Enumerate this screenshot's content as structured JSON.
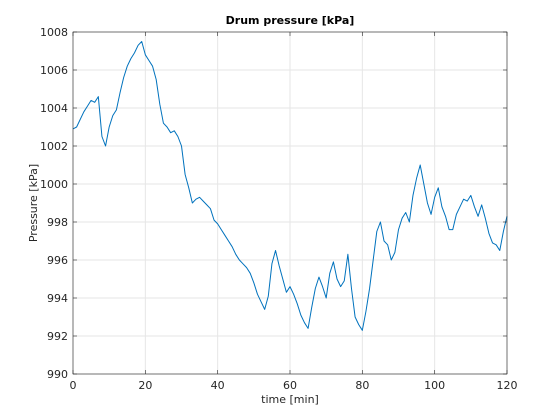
{
  "chart_data": {
    "type": "line",
    "title": "Drum pressure [kPa]",
    "xlabel": "time [min]",
    "ylabel": "Pressure [kPa]",
    "xlim": [
      0,
      120
    ],
    "ylim": [
      990,
      1008
    ],
    "xticks": [
      0,
      20,
      40,
      60,
      80,
      100,
      120
    ],
    "yticks": [
      990,
      992,
      994,
      996,
      998,
      1000,
      1002,
      1004,
      1006,
      1008
    ],
    "grid": true,
    "colors": {
      "series": "#0072BD",
      "grid": "#e6e6e6",
      "axis": "#262626"
    },
    "series": [
      {
        "x": [
          0,
          1,
          2,
          3,
          4,
          5,
          6,
          7,
          8,
          9,
          10,
          11,
          12,
          13,
          14,
          15,
          16,
          17,
          18,
          19,
          20,
          21,
          22,
          23,
          24,
          25,
          26,
          27,
          28,
          29,
          30,
          31,
          32,
          33,
          34,
          35,
          36,
          37,
          38,
          39,
          40,
          41,
          42,
          43,
          44,
          45,
          46,
          47,
          48,
          49,
          50,
          51,
          52,
          53,
          54,
          55,
          56,
          57,
          58,
          59,
          60,
          61,
          62,
          63,
          64,
          65,
          66,
          67,
          68,
          69,
          70,
          71,
          72,
          73,
          74,
          75,
          76,
          77,
          78,
          79,
          80,
          81,
          82,
          83,
          84,
          85,
          86,
          87,
          88,
          89,
          90,
          91,
          92,
          93,
          94,
          95,
          96,
          97,
          98,
          99,
          100,
          101,
          102,
          103,
          104,
          105,
          106,
          107,
          108,
          109,
          110,
          111,
          112,
          113,
          114,
          115,
          116,
          117,
          118,
          119,
          120
        ],
        "values": [
          1002.9,
          1003.0,
          1003.4,
          1003.8,
          1004.1,
          1004.4,
          1004.3,
          1004.6,
          1002.5,
          1002.0,
          1003.0,
          1003.6,
          1003.9,
          1004.8,
          1005.6,
          1006.2,
          1006.6,
          1006.9,
          1007.3,
          1007.5,
          1006.8,
          1006.5,
          1006.2,
          1005.5,
          1004.2,
          1003.2,
          1003.0,
          1002.7,
          1002.8,
          1002.5,
          1002.0,
          1000.5,
          999.8,
          999.0,
          999.2,
          999.3,
          999.1,
          998.9,
          998.7,
          998.1,
          997.9,
          997.6,
          997.3,
          997.0,
          996.7,
          996.3,
          996.0,
          995.8,
          995.6,
          995.3,
          994.8,
          994.2,
          993.8,
          993.4,
          994.1,
          995.8,
          996.5,
          995.7,
          995.0,
          994.3,
          994.6,
          994.2,
          993.7,
          993.1,
          992.7,
          992.4,
          993.5,
          994.5,
          995.1,
          994.6,
          994.0,
          995.3,
          995.9,
          995.0,
          994.6,
          994.9,
          996.3,
          994.5,
          993.0,
          992.6,
          992.3,
          993.3,
          994.5,
          996.0,
          997.5,
          998.0,
          997.0,
          996.8,
          996.0,
          996.4,
          997.6,
          998.2,
          998.5,
          998.0,
          999.4,
          1000.3,
          1001.0,
          1000.0,
          999.0,
          998.4,
          999.3,
          999.8,
          998.8,
          998.3,
          997.6,
          997.6,
          998.4,
          998.8,
          999.2,
          999.1,
          999.4,
          998.8,
          998.3,
          998.9,
          998.2,
          997.4,
          996.9,
          996.8,
          996.5,
          997.5,
          998.3
        ]
      }
    ]
  }
}
